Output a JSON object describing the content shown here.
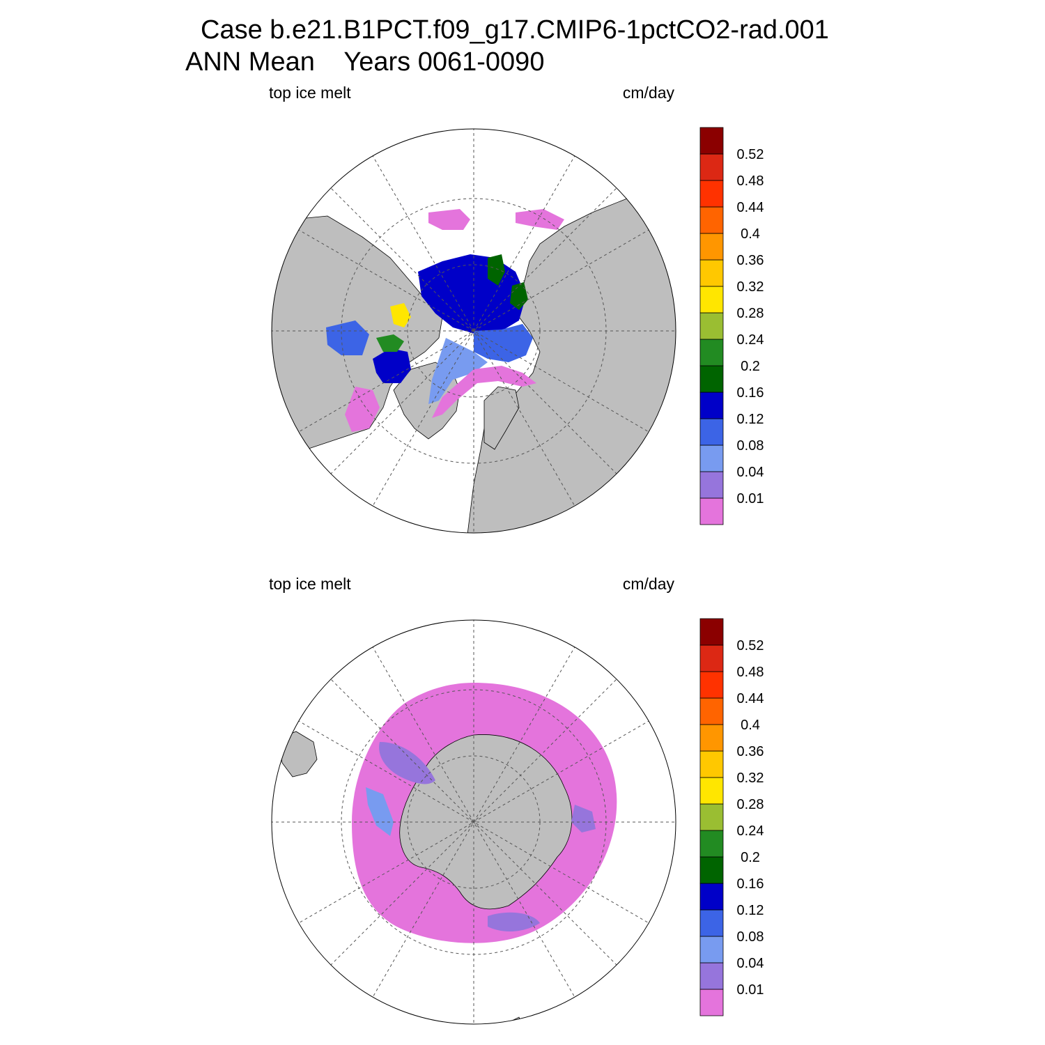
{
  "title": {
    "line1": "Case b.e21.B1PCT.f09_g17.CMIP6-1pctCO2-rad.001",
    "line2": "ANN Mean    Years 0061-0090"
  },
  "panels": [
    {
      "id": "north",
      "hemisphere": "north",
      "left_label": "top ice melt",
      "right_label": "cm/day"
    },
    {
      "id": "south",
      "hemisphere": "south",
      "left_label": "top ice melt",
      "right_label": "cm/day"
    }
  ],
  "colors": {
    "land": "#bebebe",
    "ocean": "#ffffff",
    "grid": "#555555"
  },
  "chart_data": {
    "type": "heatmap",
    "variable": "top ice melt",
    "units": "cm/day",
    "levels": [
      "0.01",
      "0.04",
      "0.08",
      "0.12",
      "0.16",
      "0.2",
      "0.24",
      "0.28",
      "0.32",
      "0.36",
      "0.4",
      "0.44",
      "0.48",
      "0.52"
    ],
    "palette": [
      "#e474dc",
      "#9675dc",
      "#789bf0",
      "#3c64e6",
      "#0000c8",
      "#006400",
      "#228b22",
      "#9abe32",
      "#ffe600",
      "#ffc800",
      "#ff9600",
      "#ff6400",
      "#ff3200",
      "#dc2814",
      "#8b0000"
    ],
    "projection": "polar stereographic"
  }
}
